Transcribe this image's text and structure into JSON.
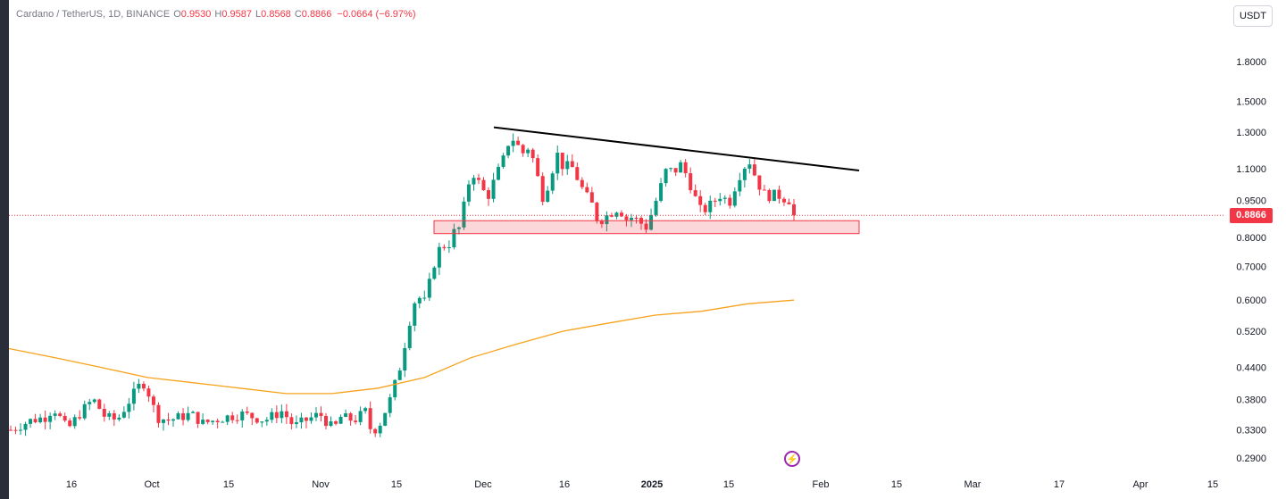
{
  "legend": {
    "symbol": "Cardano / TetherUS, 1D, BINANCE",
    "o_label": "O",
    "o_value": "0.9530",
    "h_label": "H",
    "h_value": "0.9587",
    "l_label": "L",
    "l_value": "0.8568",
    "c_label": "C",
    "c_value": "0.8866",
    "change": "−0.0664 (−6.97%)"
  },
  "unit_label": "USDT",
  "last_price": "0.8866",
  "colors": {
    "up": "#089981",
    "down": "#f23645",
    "ma": "#f7a21b",
    "trendline": "#000000",
    "zone": "#f23645"
  },
  "chart_data": {
    "type": "candlestick",
    "ticker": "Cardano / TetherUS",
    "timeframe": "1D",
    "exchange": "BINANCE",
    "y_scale": "log",
    "y_ticks": [
      "1.8000",
      "1.5000",
      "1.3000",
      "1.1000",
      "0.9500",
      "0.8000",
      "0.7000",
      "0.6000",
      "0.5200",
      "0.4400",
      "0.3800",
      "0.3300",
      "0.2900"
    ],
    "x_ticks": [
      "16",
      "Oct",
      "15",
      "Nov",
      "15",
      "Dec",
      "16",
      "2025",
      "15",
      "Feb",
      "15",
      "Mar",
      "17",
      "Apr",
      "15"
    ],
    "last_price": 0.8866,
    "moving_average": [
      0.48,
      0.46,
      0.44,
      0.42,
      0.41,
      0.4,
      0.39,
      0.39,
      0.4,
      0.42,
      0.46,
      0.49,
      0.52,
      0.54,
      0.56,
      0.57,
      0.59,
      0.6
    ],
    "trendline": {
      "start": 1.33,
      "end": 1.09
    },
    "support_zone": [
      0.815,
      0.865
    ],
    "ohlc_summary": {
      "open": 0.953,
      "high": 0.9587,
      "low": 0.8568,
      "close": 0.8866,
      "change": -0.0664,
      "change_pct": -6.97
    }
  }
}
